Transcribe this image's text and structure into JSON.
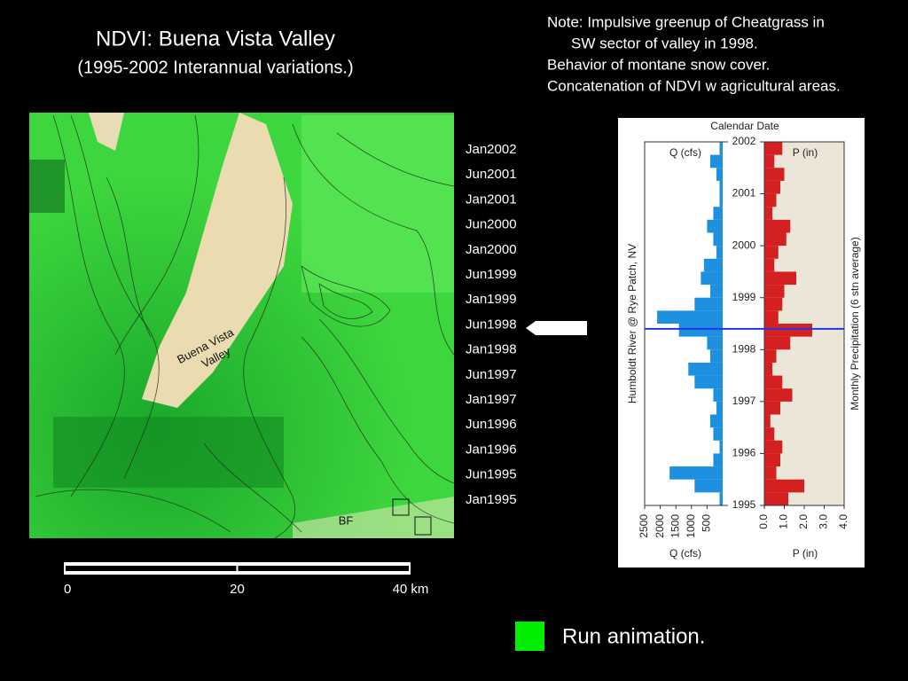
{
  "title": "NDVI: Buena Vista Valley",
  "subtitle": "(1995-2002 Interannual variations.)",
  "notes": [
    "Note: Impulsive greenup of Cheatgrass in",
    "SW sector of valley in 1998.",
    "Behavior of montane snow cover.",
    "Concatenation of NDVI w agricultural areas."
  ],
  "map": {
    "labels": [
      "Buena Vista",
      "Valley"
    ],
    "site": "BF",
    "dates": [
      "Jan2002",
      "Jun2001",
      "Jan2001",
      "Jun2000",
      "Jan2000",
      "Jun1999",
      "Jan1999",
      "Jun1998",
      "Jan1998",
      "Jun1997",
      "Jan1997",
      "Jun1996",
      "Jan1996",
      "Jun1995",
      "Jan1995"
    ],
    "scale_lim": [
      0,
      40
    ],
    "scale_ticks": [
      0,
      20,
      {
        "value": 40,
        "label": "40 km"
      }
    ]
  },
  "chart_data": {
    "type": "bar",
    "title": "Calendar Date",
    "y_label_left": "Humboldt River @ Rye Patch, NV",
    "y_label_right": "Monthly Precipitation (6 stn average)",
    "q_label": "Q (cfs)",
    "p_label": "P (in)",
    "ylim": [
      1995,
      2002
    ],
    "yticks": [
      1995,
      1996,
      1997,
      1998,
      1999,
      2000,
      2001,
      2002
    ],
    "qlim": [
      2500,
      0
    ],
    "qticks": [
      2500,
      2000,
      1500,
      1000,
      500
    ],
    "plim": [
      0,
      4
    ],
    "pticks": [
      {
        "value": 0,
        "label": "0.0"
      },
      {
        "value": 1,
        "label": "1.0"
      },
      {
        "value": 2,
        "label": "2.0"
      },
      {
        "value": 3,
        "label": "3.0"
      },
      {
        "value": 4,
        "label": "4.0"
      }
    ],
    "x": [
      1995,
      1995.25,
      1995.5,
      1995.75,
      1996,
      1996.25,
      1996.5,
      1996.75,
      1997,
      1997.25,
      1997.5,
      1997.75,
      1998,
      1998.25,
      1998.5,
      1998.75,
      1999,
      1999.25,
      1999.5,
      1999.75,
      2000,
      2000.25,
      2000.5,
      2000.75,
      2001,
      2001.25,
      2001.5,
      2001.75
    ],
    "series": [
      {
        "name": "Q (cfs)",
        "color": "#1e90e0",
        "values": [
          100,
          900,
          1700,
          300,
          100,
          300,
          400,
          200,
          300,
          900,
          1100,
          400,
          500,
          1400,
          2100,
          900,
          400,
          700,
          600,
          200,
          300,
          500,
          300,
          100,
          100,
          200,
          400,
          100
        ]
      },
      {
        "name": "P (in)",
        "color": "#d42020",
        "values": [
          1.2,
          2.0,
          0.6,
          0.8,
          0.9,
          0.5,
          0.3,
          0.8,
          1.4,
          0.9,
          0.4,
          0.6,
          1.3,
          2.4,
          0.7,
          0.9,
          1.0,
          1.6,
          0.5,
          0.7,
          1.1,
          1.3,
          0.4,
          0.6,
          0.8,
          1.0,
          0.5,
          0.9
        ]
      }
    ],
    "marker": 1998.4
  },
  "button": "Run animation."
}
